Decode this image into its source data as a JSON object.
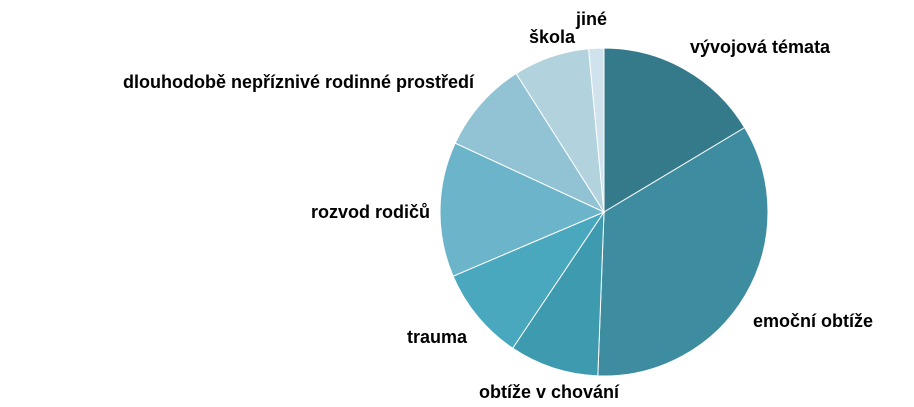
{
  "chart_data": {
    "type": "pie",
    "categories": [
      "vývojová témata",
      "emoční obtíže",
      "obtíže v chování",
      "trauma",
      "rozvod rodičů",
      "dlouhodobě nepříznivé rodinné prostředí",
      "škola",
      "jiné"
    ],
    "values": [
      16.4,
      34.2,
      8.8,
      9.2,
      13.3,
      9.1,
      7.5,
      1.5
    ],
    "colors": [
      "#357a8a",
      "#3d8ca0",
      "#3e9aae",
      "#4aa8be",
      "#6bb4ca",
      "#92c3d4",
      "#b2d2de",
      "#d0e3ec"
    ]
  }
}
